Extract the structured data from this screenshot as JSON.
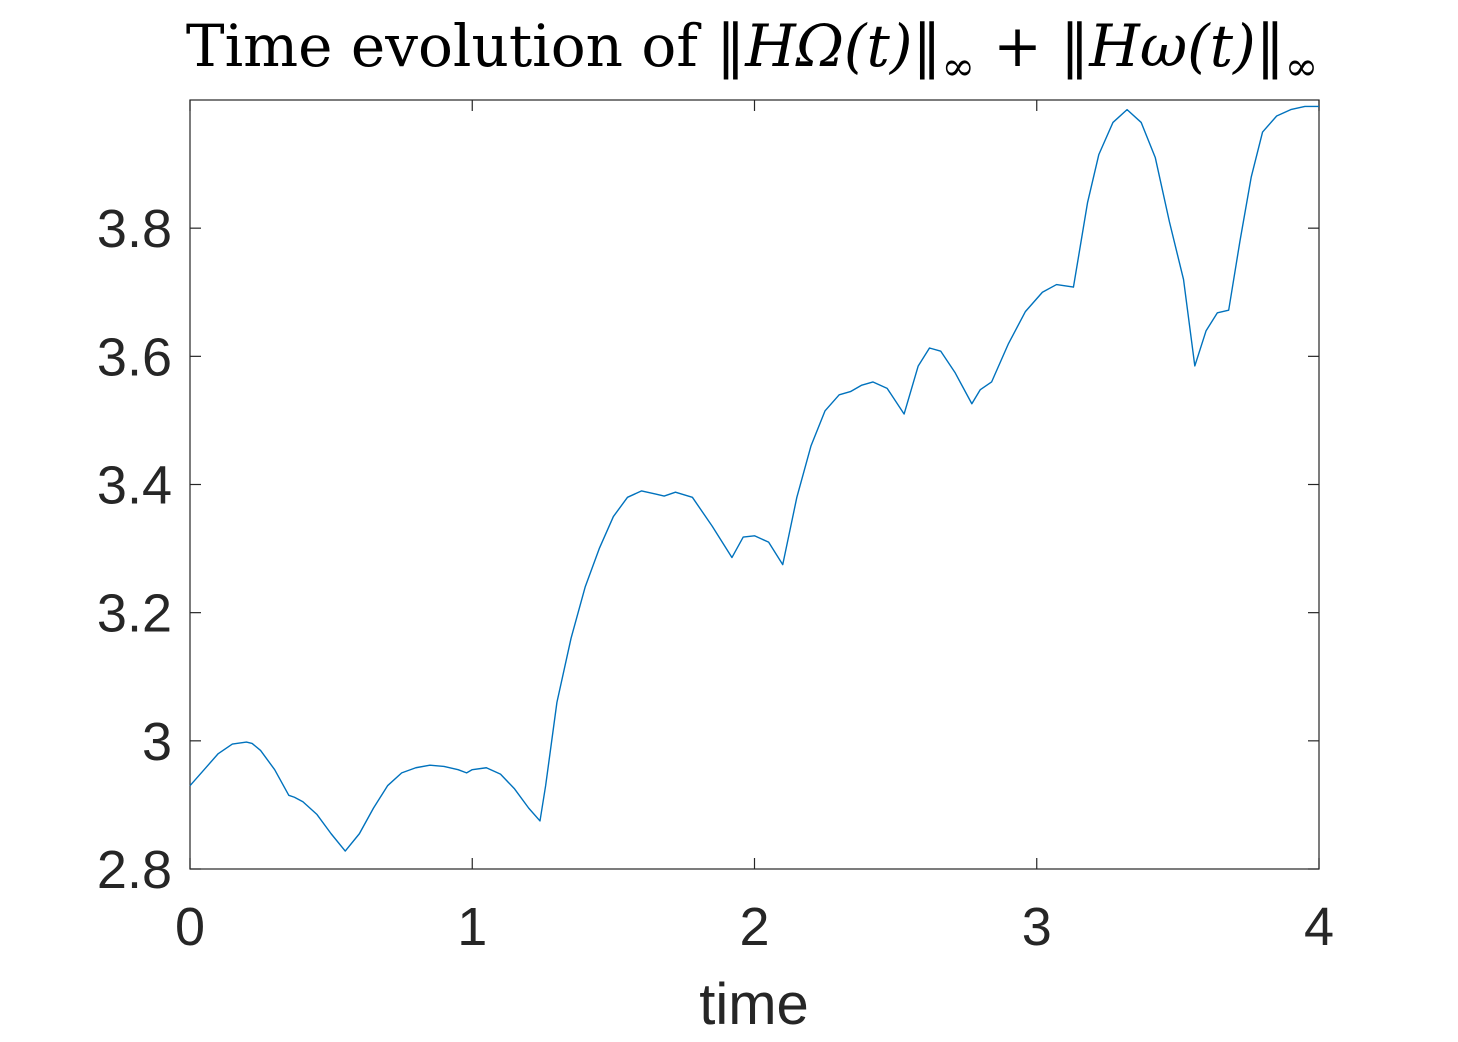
{
  "chart_data": {
    "type": "line",
    "title_parts": {
      "prefix": "Time evolution of ",
      "formula": "‖HΩ(t)‖",
      "inf1": "∞",
      "plus": " + ",
      "formula2": "‖Hω(t)‖",
      "inf2": "∞"
    },
    "xlabel": "time",
    "ylabel": "",
    "xlim": [
      0,
      4
    ],
    "ylim": [
      2.8,
      4.0
    ],
    "xticks": [
      0,
      1,
      2,
      3,
      4
    ],
    "yticks": [
      2.8,
      3.0,
      3.2,
      3.4,
      3.6,
      3.8
    ],
    "xtick_labels": [
      "0",
      "1",
      "2",
      "3",
      "4"
    ],
    "ytick_labels": [
      "2.8",
      "3",
      "3.2",
      "3.4",
      "3.6",
      "3.8"
    ],
    "grid": false,
    "box": true,
    "line_color": "#0072BD",
    "series": [
      {
        "x": [
          0,
          0.05,
          0.1,
          0.15,
          0.2,
          0.22,
          0.25,
          0.3,
          0.35,
          0.37,
          0.4,
          0.45,
          0.5,
          0.55,
          0.6,
          0.65,
          0.7,
          0.75,
          0.8,
          0.85,
          0.9,
          0.95,
          0.98,
          1.0,
          1.05,
          1.1,
          1.15,
          1.2,
          1.24,
          1.26,
          1.3,
          1.35,
          1.4,
          1.45,
          1.5,
          1.55,
          1.6,
          1.65,
          1.68,
          1.72,
          1.78,
          1.85,
          1.92,
          1.96,
          2.0,
          2.05,
          2.1,
          2.15,
          2.2,
          2.25,
          2.3,
          2.34,
          2.38,
          2.42,
          2.47,
          2.53,
          2.58,
          2.62,
          2.66,
          2.71,
          2.77,
          2.8,
          2.84,
          2.9,
          2.96,
          3.02,
          3.07,
          3.13,
          3.18,
          3.22,
          3.27,
          3.32,
          3.37,
          3.42,
          3.47,
          3.52,
          3.56,
          3.6,
          3.64,
          3.68,
          3.72,
          3.76,
          3.8,
          3.85,
          3.9,
          3.95,
          4.0
        ],
        "y": [
          2.93,
          2.955,
          2.98,
          2.995,
          2.998,
          2.996,
          2.985,
          2.955,
          2.915,
          2.912,
          2.905,
          2.885,
          2.855,
          2.828,
          2.855,
          2.895,
          2.93,
          2.95,
          2.958,
          2.962,
          2.96,
          2.955,
          2.95,
          2.955,
          2.958,
          2.948,
          2.925,
          2.895,
          2.875,
          2.93,
          3.06,
          3.16,
          3.24,
          3.3,
          3.35,
          3.38,
          3.39,
          3.385,
          3.382,
          3.388,
          3.38,
          3.335,
          3.286,
          3.318,
          3.32,
          3.31,
          3.275,
          3.38,
          3.46,
          3.515,
          3.54,
          3.545,
          3.555,
          3.56,
          3.55,
          3.51,
          3.585,
          3.613,
          3.608,
          3.575,
          3.526,
          3.548,
          3.56,
          3.62,
          3.67,
          3.7,
          3.712,
          3.708,
          3.84,
          3.915,
          3.965,
          3.985,
          3.965,
          3.91,
          3.81,
          3.72,
          3.585,
          3.64,
          3.668,
          3.672,
          3.78,
          3.88,
          3.95,
          3.975,
          3.985,
          3.99,
          3.99
        ]
      }
    ]
  }
}
